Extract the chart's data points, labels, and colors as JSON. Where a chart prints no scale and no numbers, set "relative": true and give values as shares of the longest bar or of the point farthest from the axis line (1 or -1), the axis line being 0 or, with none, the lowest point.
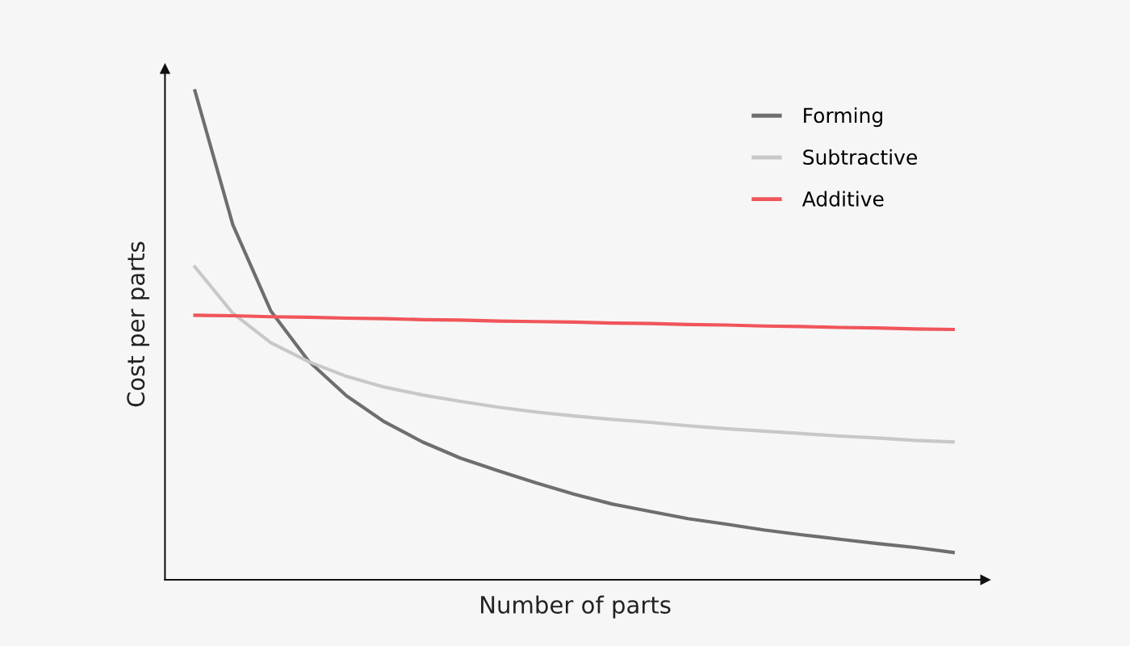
{
  "chart_data": {
    "type": "line",
    "relative": true,
    "xlabel": "Number of parts",
    "ylabel": "Cost per parts",
    "tick_labels": false,
    "grid": false,
    "legend": "top right",
    "marker": "none",
    "line_style": "solid",
    "categories": [
      null,
      null,
      null,
      null,
      null,
      null,
      null,
      null,
      null,
      null,
      null,
      null,
      null,
      null,
      null,
      null,
      null,
      null,
      null,
      null,
      null
    ],
    "series": [
      {
        "name": "Forming",
        "color": "#6e6e6e",
        "values": [
          1.0,
          0.726,
          0.55,
          0.447,
          0.376,
          0.323,
          0.282,
          0.249,
          0.223,
          0.198,
          0.175,
          0.155,
          0.14,
          0.125,
          0.114,
          0.102,
          0.092,
          0.083,
          0.074,
          0.066,
          0.056
        ]
      },
      {
        "name": "Subtractive",
        "color": "#c8c8c8",
        "values": [
          0.64,
          0.545,
          0.485,
          0.446,
          0.416,
          0.394,
          0.378,
          0.365,
          0.353,
          0.343,
          0.335,
          0.328,
          0.322,
          0.315,
          0.309,
          0.304,
          0.299,
          0.294,
          0.29,
          0.285,
          0.282
        ]
      },
      {
        "name": "Additive",
        "color": "#f0555a",
        "values": [
          0.541,
          0.54,
          0.538,
          0.537,
          0.535,
          0.534,
          0.532,
          0.531,
          0.529,
          0.528,
          0.527,
          0.525,
          0.524,
          0.522,
          0.521,
          0.519,
          0.518,
          0.516,
          0.515,
          0.513,
          0.512
        ]
      }
    ]
  }
}
